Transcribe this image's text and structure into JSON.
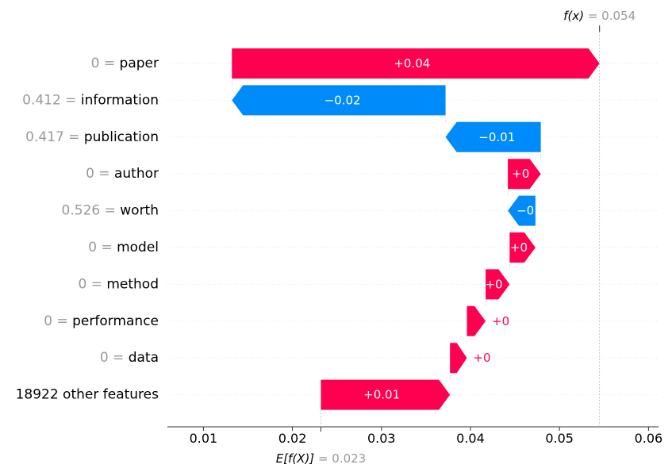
{
  "chart_data": {
    "type": "waterfall",
    "colors": {
      "positive": "#ff0051",
      "negative": "#008bfb",
      "value_gray": "#999999",
      "text": "#000000"
    },
    "xlim": [
      0.006,
      0.062
    ],
    "xticks": [
      0.01,
      0.02,
      0.03,
      0.04,
      0.05,
      0.06
    ],
    "xtick_labels": [
      "0.01",
      "0.02",
      "0.03",
      "0.04",
      "0.05",
      "0.06"
    ],
    "fx": {
      "label_math": "f(x)",
      "label_value": "= 0.054",
      "value": 0.0545
    },
    "base": {
      "label_math": "E[f(X)]",
      "label_value": "= 0.023",
      "value": 0.0232
    },
    "rows": [
      {
        "value_text": "0 =",
        "feature": "paper",
        "shap": 0.0413,
        "label": "+0.04",
        "label_inside": true
      },
      {
        "value_text": "0.412 =",
        "feature": "information",
        "shap": -0.024,
        "label": "−0.02",
        "label_inside": true
      },
      {
        "value_text": "0.417 =",
        "feature": "publication",
        "shap": -0.0107,
        "label": "−0.01",
        "label_inside": true
      },
      {
        "value_text": "0 =",
        "feature": "author",
        "shap": 0.0037,
        "label": "+0",
        "label_inside": true
      },
      {
        "value_text": "0.526 =",
        "feature": "worth",
        "shap": -0.0031,
        "label": "−0",
        "label_inside": true
      },
      {
        "value_text": "0 =",
        "feature": "model",
        "shap": 0.0029,
        "label": "+0",
        "label_inside": true
      },
      {
        "value_text": "0 =",
        "feature": "method",
        "shap": 0.0027,
        "label": "+0",
        "label_inside": true
      },
      {
        "value_text": "0 =",
        "feature": "performance",
        "shap": 0.0021,
        "label": "+0",
        "label_inside": false
      },
      {
        "value_text": "0 =",
        "feature": "data",
        "shap": 0.0019,
        "label": "+0",
        "label_inside": false
      },
      {
        "value_text": "",
        "feature": "18922 other features",
        "shap": 0.0145,
        "label": "+0.01",
        "label_inside": true
      }
    ]
  }
}
